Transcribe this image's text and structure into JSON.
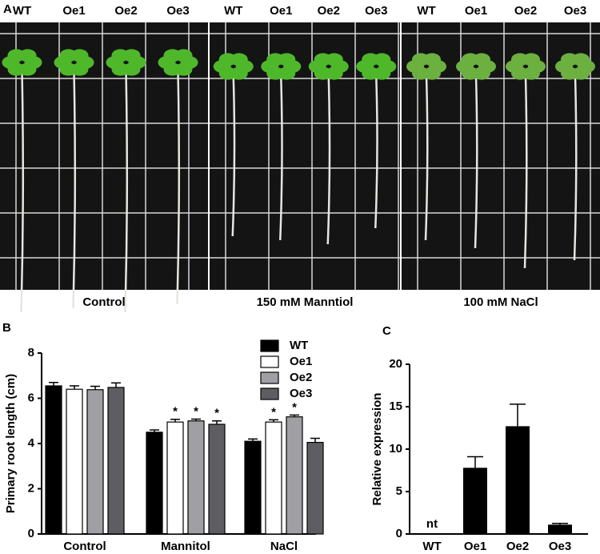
{
  "panel_a": {
    "label": "A",
    "photos": [
      {
        "genotypes": [
          "WT",
          "Oe1",
          "Oe2",
          "Oe3"
        ],
        "condition": "Control"
      },
      {
        "genotypes": [
          "WT",
          "Oe1",
          "Oe2",
          "Oe3"
        ],
        "condition": "150 mM Manntiol"
      },
      {
        "genotypes": [
          "WT",
          "Oe1",
          "Oe2",
          "Oe3"
        ],
        "condition": "100 mM NaCl"
      }
    ]
  },
  "chart_data": [
    {
      "type": "grouped_bar",
      "label": "B",
      "ylabel": "Primary root length (cm)",
      "categories": [
        "Control",
        "Mannitol",
        "NaCl"
      ],
      "series": [
        {
          "name": "WT",
          "color": "#000000",
          "values": [
            6.55,
            4.5,
            4.1
          ],
          "errors": [
            0.15,
            0.1,
            0.1
          ],
          "significance": [
            null,
            null,
            null
          ]
        },
        {
          "name": "Oe1",
          "color": "#ffffff",
          "values": [
            6.4,
            4.95,
            4.95
          ],
          "errors": [
            0.15,
            0.12,
            0.1
          ],
          "significance": [
            null,
            "*",
            "*"
          ]
        },
        {
          "name": "Oe2",
          "color": "#a0a0a4",
          "values": [
            6.38,
            5.0,
            5.18
          ],
          "errors": [
            0.15,
            0.08,
            0.08
          ],
          "significance": [
            null,
            "*",
            "*"
          ]
        },
        {
          "name": "Oe3",
          "color": "#5e5e62",
          "values": [
            6.48,
            4.85,
            4.05
          ],
          "errors": [
            0.2,
            0.15,
            0.18
          ],
          "significance": [
            null,
            "*",
            null
          ]
        }
      ],
      "ylim": [
        0,
        8
      ],
      "yticks": [
        0,
        2,
        4,
        6,
        8
      ],
      "legend": "top-right"
    },
    {
      "type": "bar",
      "label": "C",
      "ylabel": "Relative expression",
      "categories": [
        "WT",
        "Oe1",
        "Oe2",
        "Oe3"
      ],
      "values": [
        null,
        7.8,
        12.7,
        1.1
      ],
      "errors": [
        null,
        1.3,
        2.6,
        0.15
      ],
      "value_labels": [
        "nt",
        null,
        null,
        null
      ],
      "color": "#000000",
      "ylim": [
        0,
        20
      ],
      "yticks": [
        0,
        5,
        10,
        15,
        20
      ]
    }
  ]
}
